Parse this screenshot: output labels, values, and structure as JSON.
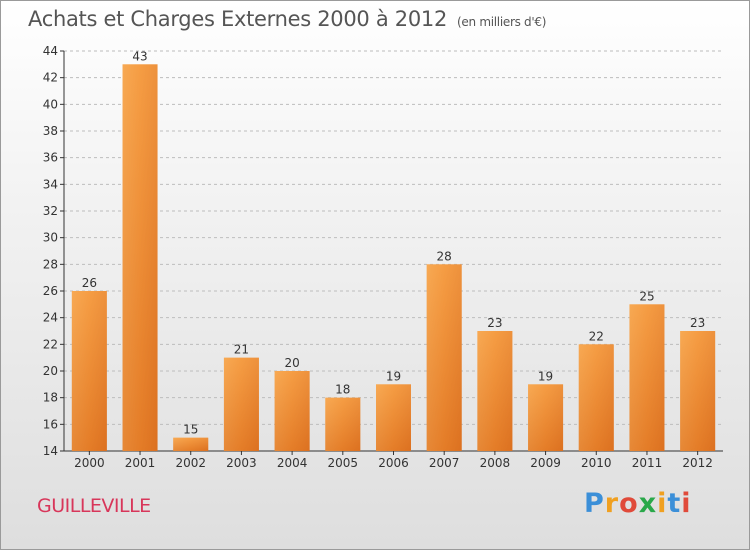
{
  "chart_data": {
    "type": "bar",
    "title": "Achats et Charges Externes 2000 à 2012",
    "subtitle": "(en milliers d'€)",
    "categories": [
      "2000",
      "2001",
      "2002",
      "2003",
      "2004",
      "2005",
      "2006",
      "2007",
      "2008",
      "2009",
      "2010",
      "2011",
      "2012"
    ],
    "values": [
      26,
      43,
      15,
      21,
      20,
      18,
      19,
      28,
      23,
      19,
      22,
      25,
      23
    ],
    "ylim": [
      14,
      44
    ],
    "yticks": [
      14,
      16,
      18,
      20,
      22,
      24,
      26,
      28,
      30,
      32,
      34,
      36,
      38,
      40,
      42,
      44
    ],
    "grid": "horizontal dashed",
    "bar_color": "#f2923a"
  },
  "town": "GUILLEVILLE",
  "logo": {
    "letters": [
      "P",
      "r",
      "o",
      "x",
      "i",
      "t",
      "i"
    ],
    "colors": [
      "#3b8fd8",
      "#f0a020",
      "#e04a3a",
      "#2aa84a",
      "#f0a020",
      "#3b8fd8",
      "#e04a3a"
    ]
  }
}
